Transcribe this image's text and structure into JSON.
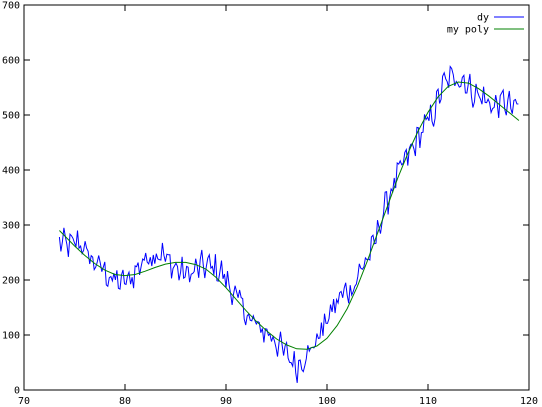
{
  "chart_data": {
    "type": "line",
    "title": "",
    "xlabel": "",
    "ylabel": "",
    "xlim": [
      70,
      120
    ],
    "ylim": [
      0,
      700
    ],
    "x_ticks": [
      70,
      80,
      90,
      100,
      110,
      120
    ],
    "y_ticks": [
      0,
      100,
      200,
      300,
      400,
      500,
      600,
      700
    ],
    "grid": false,
    "legend": {
      "placement": "top-right"
    },
    "series": [
      {
        "name": "dy",
        "color": "#0000ff",
        "style": "noisy-line",
        "x": [
          73.5,
          74.5,
          75.5,
          76.5,
          77.5,
          78.5,
          79.5,
          80.5,
          81.5,
          82.5,
          83.5,
          84.5,
          85.5,
          86.5,
          87.5,
          88.5,
          89.5,
          90.5,
          91.5,
          92.5,
          93.5,
          94.5,
          95.5,
          96.5,
          97,
          97.5,
          98.5,
          99.5,
          100.5,
          101.5,
          102.5,
          103.5,
          104.5,
          105.5,
          106.5,
          107.5,
          108.5,
          109.5,
          110.5,
          111.5,
          112.5,
          113.5,
          114.5,
          115.5,
          116.5,
          117.5,
          118.5,
          119
        ],
        "y": [
          270,
          262,
          270,
          240,
          225,
          205,
          195,
          200,
          230,
          245,
          250,
          230,
          215,
          210,
          225,
          225,
          215,
          185,
          155,
          125,
          110,
          100,
          75,
          55,
          40,
          55,
          75,
          110,
          145,
          175,
          185,
          225,
          255,
          320,
          370,
          410,
          440,
          475,
          500,
          555,
          570,
          565,
          540,
          530,
          515,
          525,
          510,
          520
        ]
      },
      {
        "name": "my poly",
        "color": "#008000",
        "style": "smooth-line",
        "x": [
          73.5,
          75,
          76,
          77,
          78,
          79,
          80,
          81,
          82,
          83,
          84,
          85,
          86,
          87,
          88,
          89,
          90,
          91,
          92,
          93,
          94,
          95,
          96,
          97,
          98,
          99,
          100,
          101,
          102,
          103,
          104,
          105,
          106,
          107,
          108,
          109,
          110,
          111,
          112,
          113,
          114,
          115,
          116,
          117,
          118,
          119
        ],
        "y": [
          290,
          262,
          245,
          230,
          218,
          210,
          208,
          210,
          216,
          223,
          229,
          232,
          232,
          228,
          220,
          205,
          186,
          165,
          144,
          125,
          108,
          93,
          82,
          75,
          74,
          80,
          94,
          117,
          148,
          188,
          235,
          285,
          335,
          385,
          430,
          470,
          505,
          533,
          552,
          560,
          558,
          548,
          535,
          520,
          505,
          490
        ]
      }
    ]
  }
}
